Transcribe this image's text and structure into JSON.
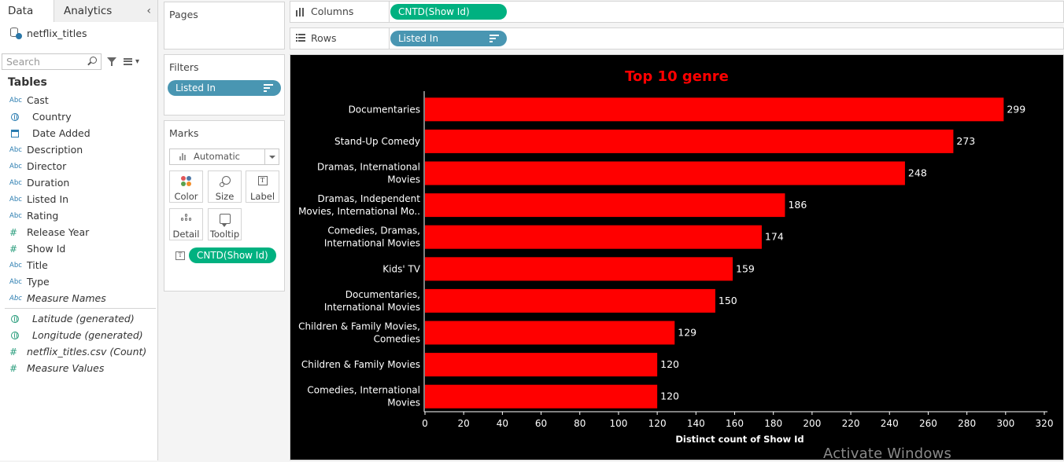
{
  "data_pane": {
    "tab_data": "Data",
    "tab_analytics": "Analytics",
    "datasource": "netflix_titles",
    "search_placeholder": "Search",
    "tables_heading": "Tables",
    "fields": [
      {
        "type": "Abc",
        "name": "Cast"
      },
      {
        "type": "geo",
        "name": "Country"
      },
      {
        "type": "date",
        "name": "Date Added"
      },
      {
        "type": "Abc",
        "name": "Description"
      },
      {
        "type": "Abc",
        "name": "Director"
      },
      {
        "type": "Abc",
        "name": "Duration"
      },
      {
        "type": "Abc",
        "name": "Listed In"
      },
      {
        "type": "Abc",
        "name": "Rating"
      },
      {
        "type": "#",
        "name": "Release Year"
      },
      {
        "type": "#",
        "name": "Show Id"
      },
      {
        "type": "Abc",
        "name": "Title"
      },
      {
        "type": "Abc",
        "name": "Type"
      },
      {
        "type": "Abc",
        "name": "Measure Names"
      }
    ],
    "measures": [
      {
        "type": "geo",
        "name": "Latitude (generated)"
      },
      {
        "type": "geo",
        "name": "Longitude (generated)"
      },
      {
        "type": "#",
        "name": "netflix_titles.csv (Count)"
      },
      {
        "type": "#",
        "name": "Measure Values"
      }
    ]
  },
  "pages": {
    "title": "Pages"
  },
  "filters": {
    "title": "Filters",
    "pill": "Listed In"
  },
  "marks": {
    "title": "Marks",
    "mark_type": "Automatic",
    "buttons": {
      "color": "Color",
      "size": "Size",
      "label": "Label",
      "detail": "Detail",
      "tooltip": "Tooltip"
    },
    "field_pill": "CNTD(Show Id)"
  },
  "shelves": {
    "columns_label": "Columns",
    "columns_pill": "CNTD(Show Id)",
    "rows_label": "Rows",
    "rows_pill": "Listed In"
  },
  "colors": {
    "bar": "#ff0000",
    "title": "#ff0000",
    "background": "#000000",
    "pill_blue": "#4996b2",
    "pill_green": "#00b180"
  },
  "watermark": "Activate Windows",
  "chart_data": {
    "type": "bar",
    "orientation": "horizontal",
    "title": "Top 10 genre",
    "xlabel": "Distinct count of Show Id",
    "ylabel": "",
    "xlim": [
      0,
      320
    ],
    "xticks": [
      0,
      20,
      40,
      60,
      80,
      100,
      120,
      140,
      160,
      180,
      200,
      220,
      240,
      260,
      280,
      300,
      320
    ],
    "categories": [
      [
        "Documentaries"
      ],
      [
        "Stand-Up Comedy"
      ],
      [
        "Dramas, International",
        "Movies"
      ],
      [
        "Dramas, Independent",
        "Movies, International Mo.."
      ],
      [
        "Comedies, Dramas,",
        "International Movies"
      ],
      [
        "Kids' TV"
      ],
      [
        "Documentaries,",
        "International Movies"
      ],
      [
        "Children & Family Movies,",
        "Comedies"
      ],
      [
        "Children & Family Movies"
      ],
      [
        "Comedies, International",
        "Movies"
      ]
    ],
    "values": [
      299,
      273,
      248,
      186,
      174,
      159,
      150,
      129,
      120,
      120
    ],
    "data_labels": true,
    "grid": false,
    "legend": "none"
  }
}
